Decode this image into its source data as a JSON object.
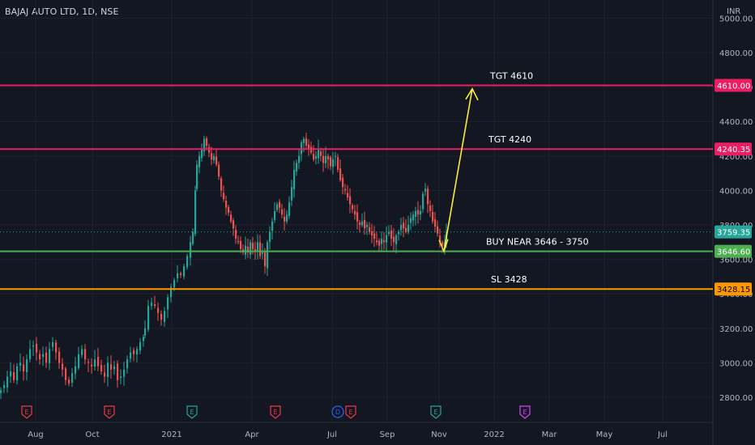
{
  "header": {
    "title": "BAJAJ AUTO LTD, 1D, NSE",
    "currency": "INR"
  },
  "chart_data": {
    "type": "candlestick",
    "title": "BAJAJ AUTO LTD, 1D, NSE",
    "y_axis": {
      "range": [
        2740,
        5100
      ],
      "ticks": [
        "2800.00",
        "3000.00",
        "3200.00",
        "3400.00",
        "3600.00",
        "3800.00",
        "4000.00",
        "4200.00",
        "4400.00",
        "4600.00",
        "4800.00",
        "5000.00"
      ]
    },
    "x_axis": {
      "ticks": [
        "Aug",
        "Oct",
        "2021",
        "Apr",
        "Jul",
        "Sep",
        "Nov",
        "2022",
        "Mar",
        "May",
        "Jul"
      ]
    },
    "series": [
      {
        "name": "price",
        "values": [
          [
            0,
            2840
          ],
          [
            4,
            2870
          ],
          [
            8,
            2920
          ],
          [
            12,
            2950
          ],
          [
            16,
            2900
          ],
          [
            20,
            2980
          ],
          [
            24,
            3000
          ],
          [
            28,
            2950
          ],
          [
            32,
            3020
          ],
          [
            36,
            3080
          ],
          [
            40,
            3100
          ],
          [
            44,
            3060
          ],
          [
            48,
            3020
          ],
          [
            52,
            3050
          ],
          [
            56,
            3000
          ],
          [
            60,
            3080
          ],
          [
            64,
            3120
          ],
          [
            68,
            3060
          ],
          [
            72,
            3000
          ],
          [
            76,
            2960
          ],
          [
            80,
            2900
          ],
          [
            84,
            2880
          ],
          [
            88,
            2940
          ],
          [
            92,
            2980
          ],
          [
            96,
            3050
          ],
          [
            100,
            3080
          ],
          [
            104,
            3020
          ],
          [
            108,
            3000
          ],
          [
            112,
            2980
          ],
          [
            116,
            3020
          ],
          [
            120,
            2980
          ],
          [
            124,
            2950
          ],
          [
            128,
            2920
          ],
          [
            132,
            3000
          ],
          [
            136,
            2960
          ],
          [
            140,
            2980
          ],
          [
            144,
            2900
          ],
          [
            148,
            2920
          ],
          [
            152,
            2960
          ],
          [
            156,
            3020
          ],
          [
            160,
            3060
          ],
          [
            164,
            3050
          ],
          [
            168,
            3080
          ],
          [
            172,
            3120
          ],
          [
            176,
            3150
          ],
          [
            178,
            3200
          ],
          [
            182,
            3330
          ],
          [
            186,
            3350
          ],
          [
            190,
            3330
          ],
          [
            194,
            3290
          ],
          [
            198,
            3250
          ],
          [
            202,
            3300
          ],
          [
            206,
            3380
          ],
          [
            210,
            3440
          ],
          [
            214,
            3480
          ],
          [
            218,
            3520
          ],
          [
            222,
            3510
          ],
          [
            226,
            3560
          ],
          [
            230,
            3620
          ],
          [
            234,
            3700
          ],
          [
            237,
            3760
          ],
          [
            240,
            4000
          ],
          [
            242,
            4150
          ],
          [
            245,
            4200
          ],
          [
            248,
            4240
          ],
          [
            251,
            4300
          ],
          [
            254,
            4260
          ],
          [
            257,
            4220
          ],
          [
            260,
            4180
          ],
          [
            263,
            4200
          ],
          [
            266,
            4150
          ],
          [
            269,
            4080
          ],
          [
            272,
            4000
          ],
          [
            275,
            3950
          ],
          [
            278,
            3900
          ],
          [
            281,
            3870
          ],
          [
            284,
            3820
          ],
          [
            287,
            3780
          ],
          [
            290,
            3720
          ],
          [
            293,
            3700
          ],
          [
            296,
            3660
          ],
          [
            299,
            3640
          ],
          [
            302,
            3680
          ],
          [
            305,
            3640
          ],
          [
            308,
            3700
          ],
          [
            311,
            3660
          ],
          [
            314,
            3650
          ],
          [
            317,
            3700
          ],
          [
            320,
            3620
          ],
          [
            323,
            3640
          ],
          [
            326,
            3560
          ],
          [
            329,
            3700
          ],
          [
            332,
            3760
          ],
          [
            335,
            3820
          ],
          [
            338,
            3880
          ],
          [
            341,
            3920
          ],
          [
            344,
            3900
          ],
          [
            347,
            3860
          ],
          [
            350,
            3820
          ],
          [
            353,
            3860
          ],
          [
            356,
            3930
          ],
          [
            359,
            4020
          ],
          [
            362,
            4120
          ],
          [
            365,
            4160
          ],
          [
            368,
            4200
          ],
          [
            371,
            4280
          ],
          [
            374,
            4300
          ],
          [
            377,
            4260
          ],
          [
            380,
            4240
          ],
          [
            383,
            4220
          ],
          [
            386,
            4180
          ],
          [
            389,
            4200
          ],
          [
            392,
            4240
          ],
          [
            395,
            4200
          ],
          [
            398,
            4160
          ],
          [
            401,
            4200
          ],
          [
            404,
            4180
          ],
          [
            407,
            4140
          ],
          [
            410,
            4180
          ],
          [
            413,
            4200
          ],
          [
            416,
            4120
          ],
          [
            419,
            4060
          ],
          [
            422,
            4020
          ],
          [
            425,
            4000
          ],
          [
            428,
            3960
          ],
          [
            431,
            3920
          ],
          [
            434,
            3890
          ],
          [
            437,
            3860
          ],
          [
            440,
            3820
          ],
          [
            443,
            3800
          ],
          [
            446,
            3820
          ],
          [
            449,
            3780
          ],
          [
            452,
            3800
          ],
          [
            455,
            3760
          ],
          [
            458,
            3740
          ],
          [
            461,
            3720
          ],
          [
            464,
            3700
          ],
          [
            467,
            3680
          ],
          [
            470,
            3720
          ],
          [
            473,
            3700
          ],
          [
            476,
            3740
          ],
          [
            479,
            3760
          ],
          [
            482,
            3720
          ],
          [
            485,
            3700
          ],
          [
            488,
            3740
          ],
          [
            491,
            3760
          ],
          [
            494,
            3800
          ],
          [
            497,
            3780
          ],
          [
            500,
            3760
          ],
          [
            503,
            3800
          ],
          [
            506,
            3840
          ],
          [
            509,
            3860
          ],
          [
            512,
            3880
          ],
          [
            515,
            3860
          ],
          [
            518,
            3880
          ],
          [
            521,
            3980
          ],
          [
            524,
            4010
          ],
          [
            527,
            3920
          ],
          [
            530,
            3880
          ],
          [
            533,
            3820
          ],
          [
            536,
            3790
          ],
          [
            539,
            3750
          ],
          [
            542,
            3700
          ],
          [
            545,
            3680
          ],
          [
            548,
            3700
          ],
          [
            550,
            3759.35
          ]
        ]
      }
    ],
    "levels": [
      {
        "name": "TGT 4610",
        "price": "4610.00",
        "value": 4610,
        "color": "#e91e63"
      },
      {
        "name": "TGT 4240",
        "price": "4240.35",
        "value": 4240.35,
        "color": "#e91e63"
      },
      {
        "name": "BUY NEAR 3646 - 3750",
        "price": "3646.60",
        "value": 3646.6,
        "color": "#4caf50"
      },
      {
        "name": "SL 3428",
        "price": "3428.15",
        "value": 3428.15,
        "color": "#ff9800"
      }
    ],
    "last_price": {
      "price": "3759.35",
      "value": 3759.35,
      "color": "#26a69a"
    },
    "projection": {
      "from": [
        548,
        3646.6
      ],
      "to": [
        583,
        4590
      ],
      "color": "#ffeb3b"
    },
    "events": [
      {
        "glyph": "E",
        "color": "#f23645",
        "x": 33
      },
      {
        "glyph": "E",
        "color": "#f23645",
        "x": 135
      },
      {
        "glyph": "E",
        "color": "#26a69a",
        "x": 237
      },
      {
        "glyph": "E",
        "color": "#f23645",
        "x": 340
      },
      {
        "glyph": "D",
        "color": "#2962ff",
        "x": 417
      },
      {
        "glyph": "E",
        "color": "#f23645",
        "x": 433
      },
      {
        "glyph": "E",
        "color": "#26a69a",
        "x": 538
      },
      {
        "glyph": "E",
        "color": "#e040fb",
        "x": 648
      }
    ]
  }
}
